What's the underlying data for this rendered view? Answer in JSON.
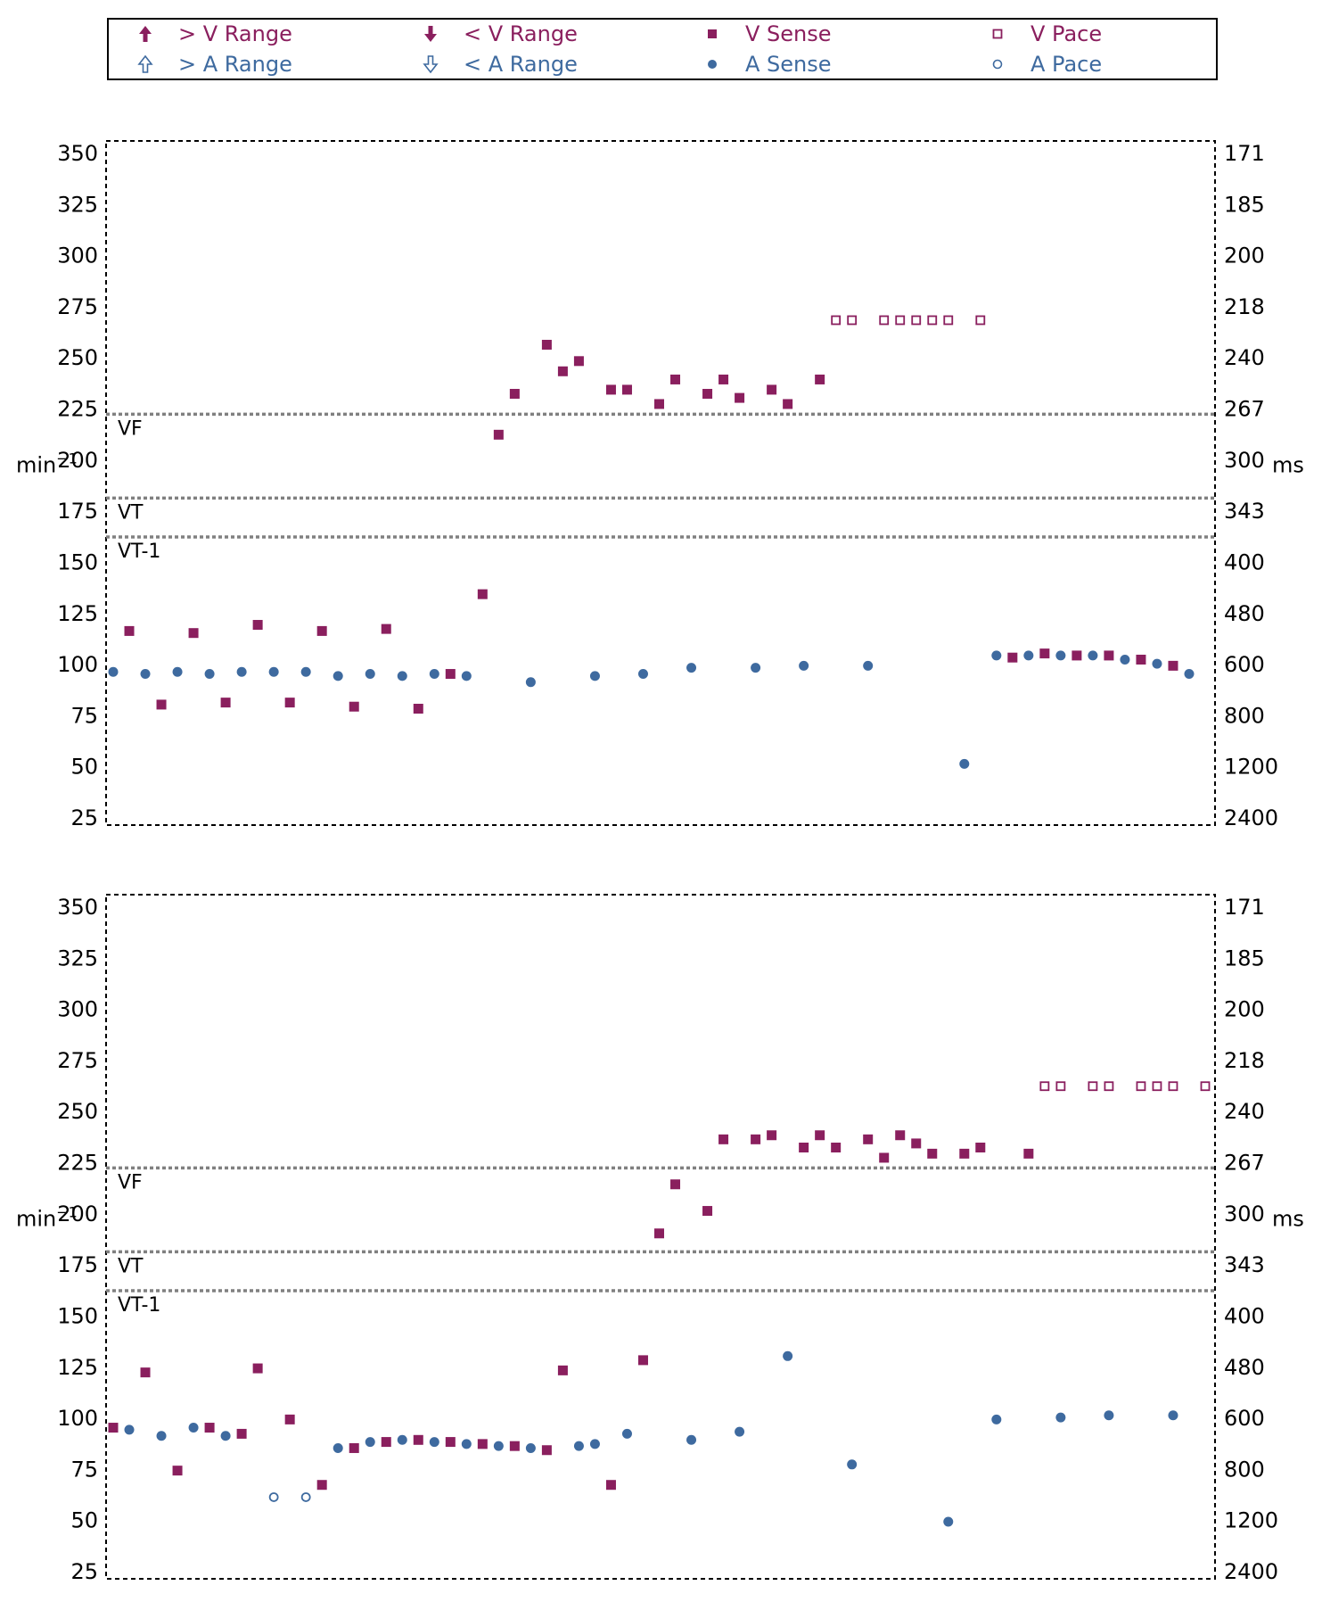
{
  "colors": {
    "ventricular": "#8a1f5e",
    "atrial": "#3e6a9f",
    "zone_line": "#808080",
    "frame": "#000000"
  },
  "legend": {
    "items": [
      {
        "id": "v-above-range",
        "label": "> V Range",
        "symbol": "arrow-up-filled",
        "channel": "ventricular"
      },
      {
        "id": "v-below-range",
        "label": "< V Range",
        "symbol": "arrow-down-filled",
        "channel": "ventricular"
      },
      {
        "id": "v-sense",
        "label": "V Sense",
        "symbol": "square-filled",
        "channel": "ventricular"
      },
      {
        "id": "v-pace",
        "label": "V Pace",
        "symbol": "square-open",
        "channel": "ventricular"
      },
      {
        "id": "a-above-range",
        "label": "> A Range",
        "symbol": "arrow-up-open",
        "channel": "atrial"
      },
      {
        "id": "a-below-range",
        "label": "< A Range",
        "symbol": "arrow-down-open",
        "channel": "atrial"
      },
      {
        "id": "a-sense",
        "label": "A Sense",
        "symbol": "circle-filled",
        "channel": "atrial"
      },
      {
        "id": "a-pace",
        "label": "A Pace",
        "symbol": "circle-open",
        "channel": "atrial"
      }
    ]
  },
  "chart_data": [
    {
      "type": "scatter",
      "ylabel_left": "min",
      "ylabel_left_exp": "−1",
      "ylabel_right": "ms",
      "ylim": [
        25,
        350
      ],
      "xlim": [
        0,
        68
      ],
      "yticks": [
        350,
        325,
        300,
        275,
        250,
        225,
        200,
        175,
        150,
        125,
        100,
        75,
        50,
        25
      ],
      "yticks_right": [
        "171",
        "185",
        "200",
        "218",
        "240",
        "267",
        "300",
        "343",
        "400",
        "480",
        "600",
        "800",
        "1200",
        "2400"
      ],
      "zones": [
        {
          "label": "VF",
          "value": 222
        },
        {
          "label": "VT",
          "value": 181
        },
        {
          "label": "VT-1",
          "value": 162
        }
      ],
      "series": [
        {
          "name": "V Sense",
          "marker": "square-filled",
          "channel": "ventricular",
          "points": [
            [
              1,
              116
            ],
            [
              3,
              80
            ],
            [
              5,
              115
            ],
            [
              7,
              81
            ],
            [
              9,
              119
            ],
            [
              11,
              81
            ],
            [
              13,
              116
            ],
            [
              15,
              79
            ],
            [
              17,
              117
            ],
            [
              19,
              78
            ],
            [
              21,
              95
            ],
            [
              23,
              134
            ],
            [
              24,
              212
            ],
            [
              25,
              232
            ],
            [
              27,
              256
            ],
            [
              28,
              243
            ],
            [
              29,
              248
            ],
            [
              31,
              234
            ],
            [
              32,
              234
            ],
            [
              34,
              227
            ],
            [
              35,
              239
            ],
            [
              37,
              232
            ],
            [
              38,
              239
            ],
            [
              39,
              230
            ],
            [
              41,
              234
            ],
            [
              42,
              227
            ],
            [
              44,
              239
            ],
            [
              56,
              103
            ],
            [
              58,
              105
            ],
            [
              60,
              104
            ],
            [
              62,
              104
            ],
            [
              64,
              102
            ],
            [
              66,
              99
            ]
          ]
        },
        {
          "name": "V Pace",
          "marker": "square-open",
          "channel": "ventricular",
          "points": [
            [
              45,
              268
            ],
            [
              46,
              268
            ],
            [
              48,
              268
            ],
            [
              49,
              268
            ],
            [
              50,
              268
            ],
            [
              51,
              268
            ],
            [
              52,
              268
            ],
            [
              54,
              268
            ]
          ]
        },
        {
          "name": "A Sense",
          "marker": "circle-filled",
          "channel": "atrial",
          "points": [
            [
              0,
              96
            ],
            [
              2,
              95
            ],
            [
              4,
              96
            ],
            [
              6,
              95
            ],
            [
              8,
              96
            ],
            [
              10,
              96
            ],
            [
              12,
              96
            ],
            [
              14,
              94
            ],
            [
              16,
              95
            ],
            [
              18,
              94
            ],
            [
              20,
              95
            ],
            [
              22,
              94
            ],
            [
              26,
              91
            ],
            [
              30,
              94
            ],
            [
              33,
              95
            ],
            [
              36,
              98
            ],
            [
              40,
              98
            ],
            [
              43,
              99
            ],
            [
              47,
              99
            ],
            [
              53,
              51
            ],
            [
              55,
              104
            ],
            [
              57,
              104
            ],
            [
              59,
              104
            ],
            [
              61,
              104
            ],
            [
              63,
              102
            ],
            [
              65,
              100
            ],
            [
              67,
              95
            ]
          ]
        }
      ]
    },
    {
      "type": "scatter",
      "ylabel_left": "min",
      "ylabel_left_exp": "−1",
      "ylabel_right": "ms",
      "ylim": [
        25,
        350
      ],
      "xlim": [
        0,
        68
      ],
      "yticks": [
        350,
        325,
        300,
        275,
        250,
        225,
        200,
        175,
        150,
        125,
        100,
        75,
        50,
        25
      ],
      "yticks_right": [
        "171",
        "185",
        "200",
        "218",
        "240",
        "267",
        "300",
        "343",
        "400",
        "480",
        "600",
        "800",
        "1200",
        "2400"
      ],
      "zones": [
        {
          "label": "VF",
          "value": 222
        },
        {
          "label": "VT",
          "value": 181
        },
        {
          "label": "VT-1",
          "value": 162
        }
      ],
      "series": [
        {
          "name": "V Sense",
          "marker": "square-filled",
          "channel": "ventricular",
          "points": [
            [
              0,
              95
            ],
            [
              2,
              122
            ],
            [
              4,
              74
            ],
            [
              6,
              95
            ],
            [
              8,
              92
            ],
            [
              9,
              124
            ],
            [
              11,
              99
            ],
            [
              13,
              67
            ],
            [
              15,
              85
            ],
            [
              17,
              88
            ],
            [
              19,
              89
            ],
            [
              21,
              88
            ],
            [
              23,
              87
            ],
            [
              25,
              86
            ],
            [
              27,
              84
            ],
            [
              28,
              123
            ],
            [
              31,
              67
            ],
            [
              33,
              128
            ],
            [
              34,
              190
            ],
            [
              35,
              214
            ],
            [
              37,
              201
            ],
            [
              38,
              236
            ],
            [
              40,
              236
            ],
            [
              41,
              238
            ],
            [
              43,
              232
            ],
            [
              44,
              238
            ],
            [
              45,
              232
            ],
            [
              47,
              236
            ],
            [
              48,
              227
            ],
            [
              49,
              238
            ],
            [
              50,
              234
            ],
            [
              51,
              229
            ],
            [
              53,
              229
            ],
            [
              54,
              232
            ],
            [
              57,
              229
            ]
          ]
        },
        {
          "name": "V Pace",
          "marker": "square-open",
          "channel": "ventricular",
          "points": [
            [
              58,
              262
            ],
            [
              59,
              262
            ],
            [
              61,
              262
            ],
            [
              62,
              262
            ],
            [
              64,
              262
            ],
            [
              65,
              262
            ],
            [
              66,
              262
            ],
            [
              68,
              262
            ]
          ]
        },
        {
          "name": "A Sense",
          "marker": "circle-filled",
          "channel": "atrial",
          "points": [
            [
              1,
              94
            ],
            [
              3,
              91
            ],
            [
              5,
              95
            ],
            [
              7,
              91
            ],
            [
              14,
              85
            ],
            [
              16,
              88
            ],
            [
              18,
              89
            ],
            [
              20,
              88
            ],
            [
              22,
              87
            ],
            [
              24,
              86
            ],
            [
              26,
              85
            ],
            [
              29,
              86
            ],
            [
              30,
              87
            ],
            [
              32,
              92
            ],
            [
              36,
              89
            ],
            [
              39,
              93
            ],
            [
              42,
              130
            ],
            [
              46,
              77
            ],
            [
              52,
              49
            ],
            [
              55,
              99
            ],
            [
              59,
              100
            ],
            [
              62,
              101
            ],
            [
              66,
              101
            ]
          ]
        },
        {
          "name": "A Pace",
          "marker": "circle-open",
          "channel": "atrial",
          "points": [
            [
              10,
              61
            ],
            [
              12,
              61
            ]
          ]
        }
      ]
    }
  ]
}
